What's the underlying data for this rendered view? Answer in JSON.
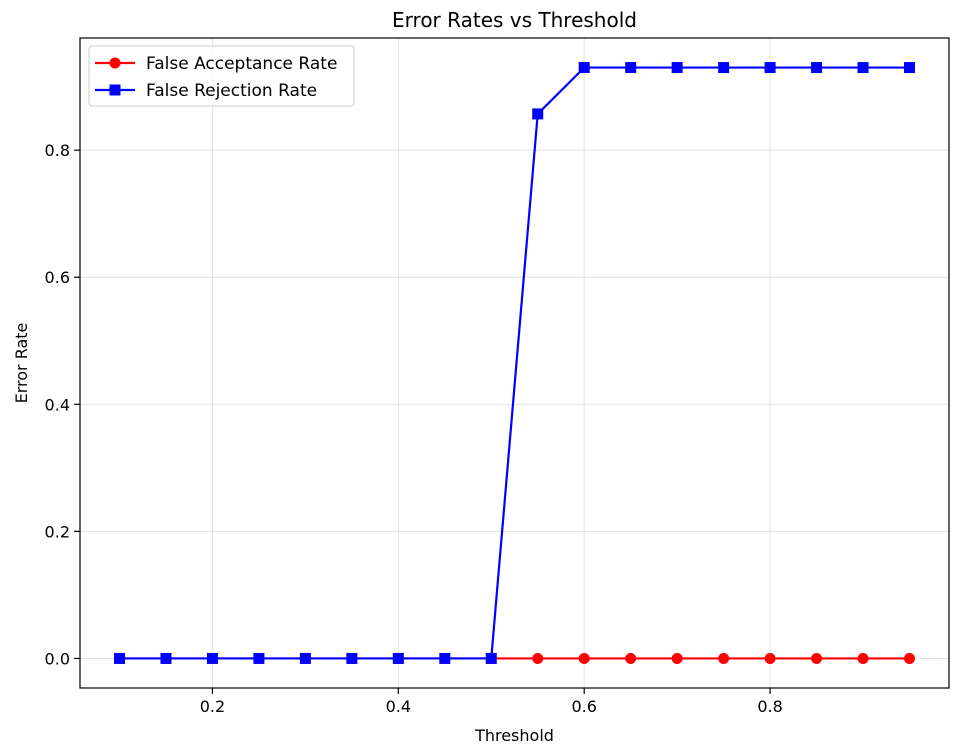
{
  "chart_data": {
    "type": "line",
    "title": "Error Rates vs Threshold",
    "xlabel": "Threshold",
    "ylabel": "Error Rate",
    "xlim": [
      0.0575,
      0.9925
    ],
    "ylim": [
      -0.0465,
      0.9765
    ],
    "xticks": [
      0.2,
      0.4,
      0.6,
      0.8
    ],
    "xtick_labels": [
      "0.2",
      "0.4",
      "0.6",
      "0.8"
    ],
    "yticks": [
      0.0,
      0.2,
      0.4,
      0.6,
      0.8
    ],
    "ytick_labels": [
      "0.0",
      "0.2",
      "0.4",
      "0.6",
      "0.8"
    ],
    "grid": true,
    "legend_position": "top-left",
    "x": [
      0.1,
      0.15,
      0.2,
      0.25,
      0.3,
      0.35,
      0.4,
      0.45,
      0.5,
      0.55,
      0.6,
      0.65,
      0.7,
      0.75,
      0.8,
      0.85,
      0.9,
      0.95
    ],
    "series": [
      {
        "name": "False Acceptance Rate",
        "color": "#ff0000",
        "marker": "circle",
        "values": [
          0,
          0,
          0,
          0,
          0,
          0,
          0,
          0,
          0,
          0,
          0,
          0,
          0,
          0,
          0,
          0,
          0,
          0
        ]
      },
      {
        "name": "False Rejection Rate",
        "color": "#0000ff",
        "marker": "square",
        "values": [
          0,
          0,
          0,
          0,
          0,
          0,
          0,
          0,
          0,
          0.857,
          0.93,
          0.93,
          0.93,
          0.93,
          0.93,
          0.93,
          0.93,
          0.93
        ]
      }
    ]
  }
}
